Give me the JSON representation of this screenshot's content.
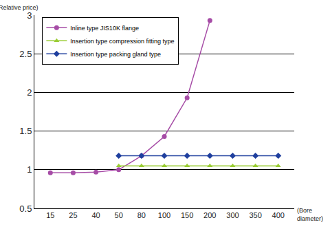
{
  "chart_data": {
    "type": "line",
    "y_label": "(Relative price)",
    "x_label": "(Bore diameter)",
    "categories": [
      "15",
      "25",
      "40",
      "50",
      "80",
      "100",
      "150",
      "200",
      "300",
      "350",
      "400"
    ],
    "series": [
      {
        "name": "Inline type JIS10K flange",
        "color": "#a64ca6",
        "marker": "circle",
        "values": [
          0.96,
          0.96,
          0.97,
          1.0,
          1.18,
          1.43,
          1.93,
          2.93,
          null,
          null,
          null
        ]
      },
      {
        "name": "Insertion type compression fitting type",
        "color": "#99cc33",
        "marker": "triangle-up",
        "values": [
          null,
          null,
          null,
          1.05,
          1.05,
          1.05,
          1.05,
          1.05,
          1.05,
          1.05,
          1.05
        ]
      },
      {
        "name": "Insertion type packing gland type",
        "color": "#1f3f9e",
        "marker": "diamond",
        "values": [
          null,
          null,
          null,
          1.18,
          1.18,
          1.18,
          1.18,
          1.18,
          1.18,
          1.18,
          1.18
        ]
      }
    ],
    "ylim": [
      0.5,
      3
    ],
    "yticks": [
      0.5,
      1,
      1.5,
      2,
      2.5,
      3
    ],
    "grid": true,
    "legend": "upper left"
  }
}
